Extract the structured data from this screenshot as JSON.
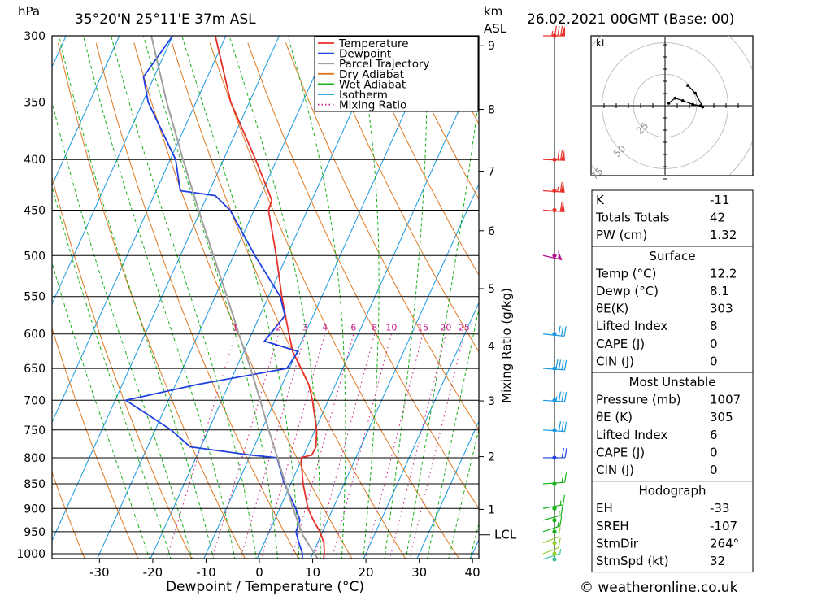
{
  "header": {
    "pressure_unit": "hPa",
    "location": "35°20'N  25°11'E  37m  ASL",
    "km_label": "km",
    "asl_label": "ASL",
    "datetime": "26.02.2021  00GMT  (Base: 00)"
  },
  "xaxis_title": "Dewpoint / Temperature (°C)",
  "mixing_ratio_title": "Mixing Ratio (g/kg)",
  "lcl_label": "LCL",
  "hodograph": {
    "unit": "kt",
    "ring_labels": [
      "25",
      "50",
      "75"
    ]
  },
  "footer": "© weatheronline.co.uk",
  "legend": [
    {
      "label": "Temperature",
      "color": "#e8302a",
      "style": "solid"
    },
    {
      "label": "Dewpoint",
      "color": "#2040e0",
      "style": "solid"
    },
    {
      "label": "Parcel Trajectory",
      "color": "#a0a0a0",
      "style": "solid"
    },
    {
      "label": "Dry Adiabat",
      "color": "#e07820",
      "style": "solid"
    },
    {
      "label": "Wet Adiabat",
      "color": "#18b018",
      "style": "solid"
    },
    {
      "label": "Isotherm",
      "color": "#1898e0",
      "style": "solid"
    },
    {
      "label": "Mixing Ratio",
      "color": "#c81890",
      "style": "dotted"
    }
  ],
  "indices": [
    {
      "rows": [
        [
          "K",
          "-11"
        ],
        [
          "Totals Totals",
          "42"
        ],
        [
          "PW (cm)",
          "1.32"
        ]
      ]
    },
    {
      "title": "Surface",
      "rows": [
        [
          "Temp (°C)",
          "12.2"
        ],
        [
          "Dewp (°C)",
          "8.1"
        ],
        [
          "θE(K)",
          "303"
        ],
        [
          "Lifted Index",
          "8"
        ],
        [
          "CAPE (J)",
          "0"
        ],
        [
          "CIN (J)",
          "0"
        ]
      ]
    },
    {
      "title": "Most Unstable",
      "rows": [
        [
          "Pressure (mb)",
          "1007"
        ],
        [
          "θE (K)",
          "305"
        ],
        [
          "Lifted Index",
          "6"
        ],
        [
          "CAPE (J)",
          "0"
        ],
        [
          "CIN (J)",
          "0"
        ]
      ]
    },
    {
      "title": "Hodograph",
      "rows": [
        [
          "EH",
          "-33"
        ],
        [
          "SREH",
          "-107"
        ],
        [
          "StmDir",
          "264°"
        ],
        [
          "StmSpd (kt)",
          "32"
        ]
      ]
    }
  ],
  "chart_data": {
    "type": "line",
    "title": "",
    "xlabel": "Dewpoint / Temperature (°C)",
    "ylabel": "hPa",
    "pressure_levels": [
      300,
      350,
      400,
      450,
      500,
      550,
      600,
      650,
      700,
      750,
      800,
      850,
      900,
      950,
      1000
    ],
    "temperature_ticks": [
      -30,
      -20,
      -10,
      0,
      10,
      20,
      30,
      40
    ],
    "xlim": [
      -40,
      40
    ],
    "pressure_range": [
      300,
      1015
    ],
    "skew": true,
    "height_ticks_km": [
      {
        "km": "1",
        "p": 902
      },
      {
        "km": "2",
        "p": 798
      },
      {
        "km": "3",
        "p": 701
      },
      {
        "km": "4",
        "p": 617
      },
      {
        "km": "5",
        "p": 540
      },
      {
        "km": "6",
        "p": 472
      },
      {
        "km": "7",
        "p": 411
      },
      {
        "km": "8",
        "p": 356
      },
      {
        "km": "9",
        "p": 307
      }
    ],
    "lcl_pressure": 957,
    "mixing_ratio_labels": [
      "1",
      "2",
      "3",
      "4",
      "6",
      "8",
      "10",
      "15",
      "20",
      "25"
    ],
    "mixing_ratio_values": [
      1,
      2,
      3,
      4,
      6,
      8,
      10,
      15,
      20,
      25
    ],
    "series": [
      {
        "name": "Temperature",
        "color": "#e8302a",
        "points": [
          [
            1013,
            12.5
          ],
          [
            1000,
            12.2
          ],
          [
            975,
            11.2
          ],
          [
            950,
            9.5
          ],
          [
            925,
            7.3
          ],
          [
            900,
            5.3
          ],
          [
            850,
            2.3
          ],
          [
            800,
            -0.3
          ],
          [
            795,
            1.5
          ],
          [
            780,
            1.6
          ],
          [
            750,
            0.3
          ],
          [
            700,
            -3.0
          ],
          [
            675,
            -5.0
          ],
          [
            650,
            -7.8
          ],
          [
            625,
            -10.8
          ],
          [
            600,
            -13.0
          ],
          [
            550,
            -17.5
          ],
          [
            500,
            -22.0
          ],
          [
            450,
            -27.3
          ],
          [
            440,
            -27.5
          ],
          [
            430,
            -29.0
          ],
          [
            400,
            -34.0
          ],
          [
            350,
            -43.5
          ],
          [
            300,
            -52.0
          ]
        ]
      },
      {
        "name": "Dewpoint",
        "color": "#2040e0",
        "points": [
          [
            1013,
            8.5
          ],
          [
            1000,
            8.1
          ],
          [
            975,
            6.5
          ],
          [
            950,
            5.0
          ],
          [
            925,
            4.8
          ],
          [
            900,
            3.0
          ],
          [
            850,
            -1.2
          ],
          [
            800,
            -4.8
          ],
          [
            795,
            -10.0
          ],
          [
            780,
            -22.0
          ],
          [
            750,
            -27.0
          ],
          [
            700,
            -38.0
          ],
          [
            675,
            -26.0
          ],
          [
            650,
            -10.5
          ],
          [
            625,
            -9.8
          ],
          [
            610,
            -17.0
          ],
          [
            600,
            -16.5
          ],
          [
            575,
            -15.3
          ],
          [
            550,
            -17.8
          ],
          [
            500,
            -26.0
          ],
          [
            450,
            -34.5
          ],
          [
            435,
            -38.5
          ],
          [
            430,
            -45.5
          ],
          [
            400,
            -49.0
          ],
          [
            350,
            -59.0
          ],
          [
            330,
            -62.0
          ],
          [
            300,
            -60.0
          ]
        ]
      },
      {
        "name": "Parcel Trajectory",
        "color": "#a0a0a0",
        "points": [
          [
            1013,
            11.5
          ],
          [
            957,
            6.5
          ],
          [
            900,
            2.5
          ],
          [
            850,
            -1.0
          ],
          [
            800,
            -4.7
          ],
          [
            750,
            -8.7
          ],
          [
            700,
            -12.8
          ],
          [
            650,
            -17.3
          ],
          [
            600,
            -22.4
          ],
          [
            550,
            -27.8
          ],
          [
            500,
            -33.8
          ],
          [
            450,
            -40.4
          ],
          [
            400,
            -47.6
          ],
          [
            350,
            -55.5
          ],
          [
            300,
            -64.0
          ]
        ]
      }
    ],
    "wind_barbs": [
      {
        "p": 1013,
        "dir": 230,
        "kt": 5
      },
      {
        "p": 1000,
        "dir": 225,
        "kt": 10
      },
      {
        "p": 975,
        "dir": 225,
        "kt": 10
      },
      {
        "p": 950,
        "dir": 230,
        "kt": 15
      },
      {
        "p": 925,
        "dir": 235,
        "kt": 15
      },
      {
        "p": 900,
        "dir": 245,
        "kt": 15
      },
      {
        "p": 850,
        "dir": 260,
        "kt": 15
      },
      {
        "p": 800,
        "dir": 270,
        "kt": 20
      },
      {
        "p": 750,
        "dir": 280,
        "kt": 30
      },
      {
        "p": 700,
        "dir": 280,
        "kt": 35
      },
      {
        "p": 650,
        "dir": 280,
        "kt": 40
      },
      {
        "p": 600,
        "dir": 285,
        "kt": 30
      },
      {
        "p": 500,
        "dir": 300,
        "kt": 55
      },
      {
        "p": 450,
        "dir": 280,
        "kt": 60
      },
      {
        "p": 430,
        "dir": 280,
        "kt": 65
      },
      {
        "p": 400,
        "dir": 275,
        "kt": 70
      },
      {
        "p": 300,
        "dir": 270,
        "kt": 85
      }
    ],
    "hodograph_points": [
      [
        3,
        2
      ],
      [
        8,
        6
      ],
      [
        14,
        4
      ],
      [
        22,
        1
      ],
      [
        28,
        0
      ],
      [
        30,
        -1
      ],
      [
        24,
        10
      ],
      [
        18,
        16
      ]
    ]
  }
}
